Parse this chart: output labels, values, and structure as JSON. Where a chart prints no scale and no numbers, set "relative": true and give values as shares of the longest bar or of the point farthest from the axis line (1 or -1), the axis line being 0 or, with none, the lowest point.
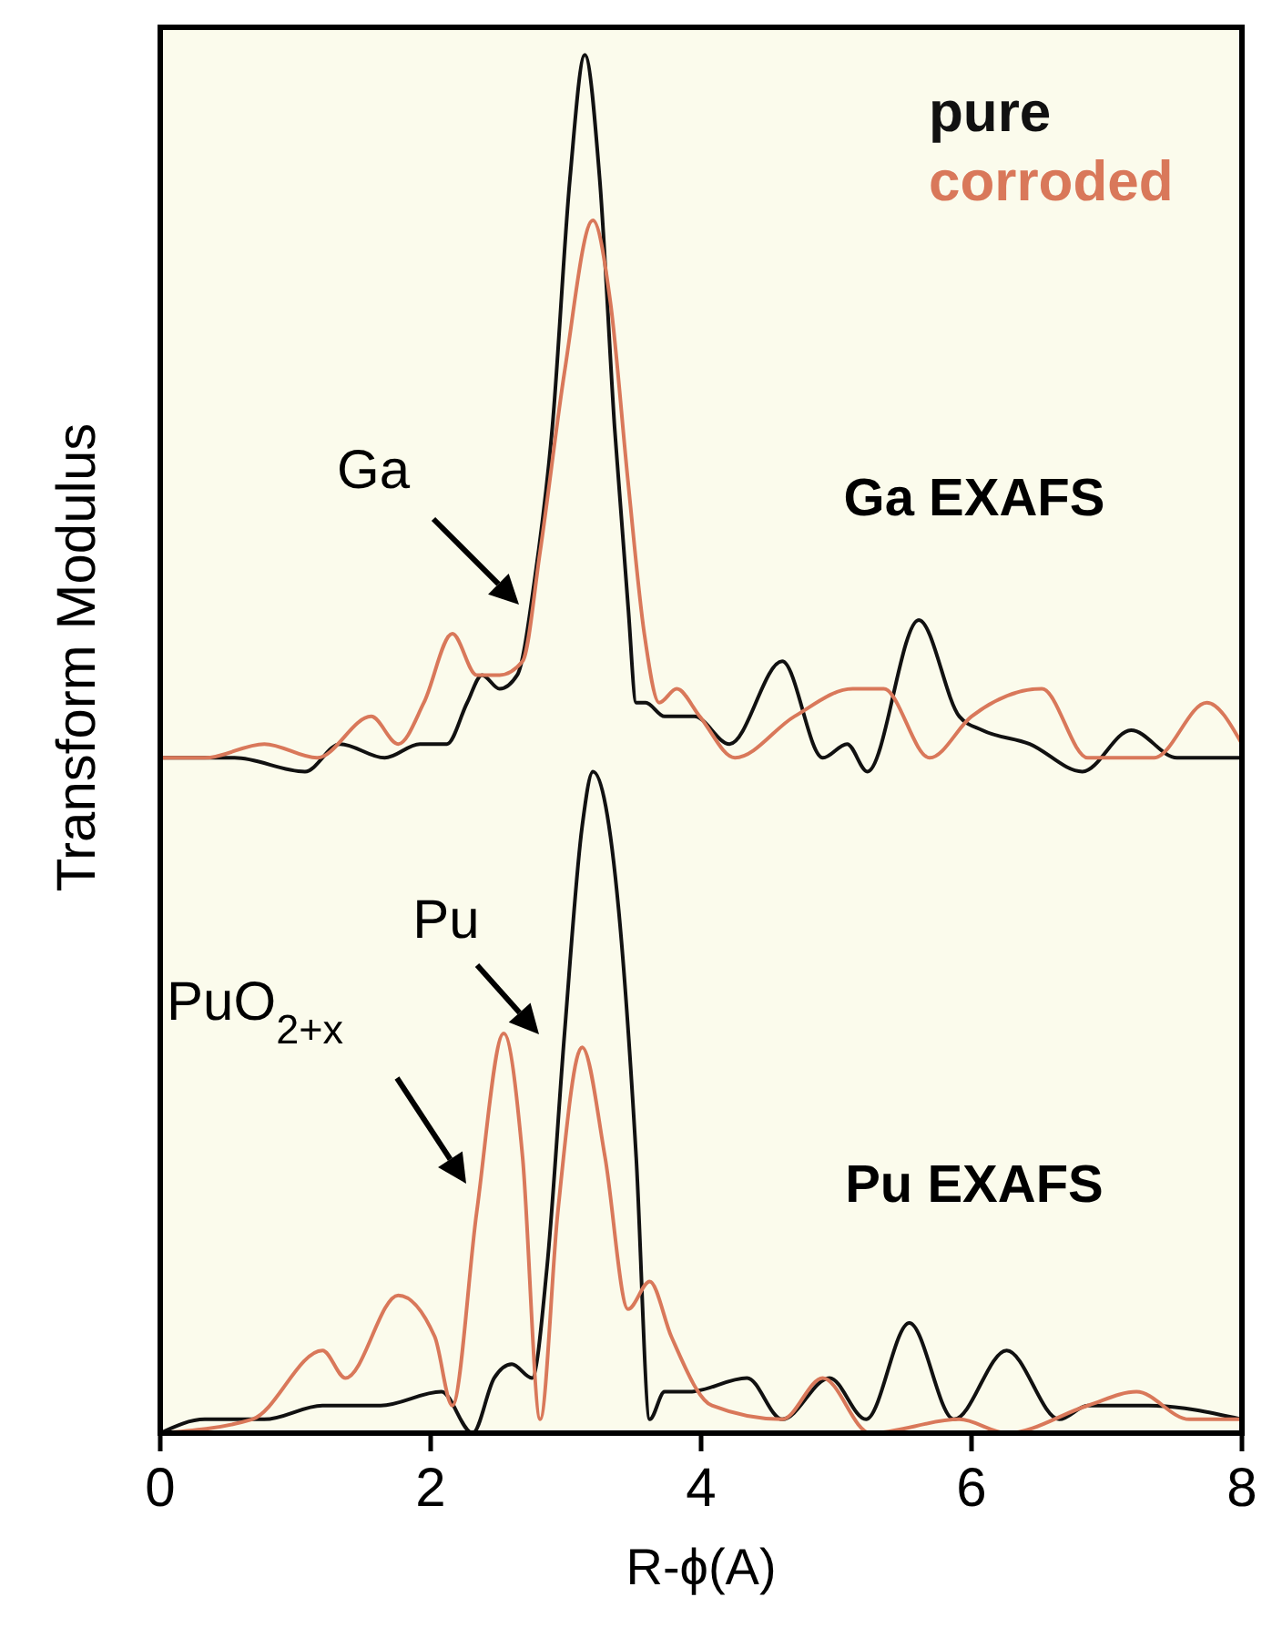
{
  "chart_data": {
    "type": "line",
    "relative": true,
    "xlabel": "R-ϕ(A)",
    "ylabel": "Transform Modulus",
    "xlim": [
      0,
      8
    ],
    "xticks": [
      0,
      2,
      4,
      6,
      8
    ],
    "legend": "top right",
    "grid": false,
    "tick_labels": "x",
    "series": [
      {
        "name": "pure",
        "color": "#111111",
        "x": [
          0,
          0.55,
          1.07,
          1.33,
          1.66,
          1.92,
          2.12,
          2.27,
          2.38,
          2.51,
          2.64,
          2.77,
          2.9,
          3.03,
          3.14,
          3.25,
          3.36,
          3.46,
          3.52,
          3.59,
          3.73,
          3.95,
          4.21,
          4.6,
          4.9,
          5.08,
          5.23,
          5.61,
          5.91,
          6.08,
          6.43,
          6.82,
          7.18,
          7.52,
          8
        ],
        "values": [
          0.49,
          0.49,
          0.48,
          0.5,
          0.49,
          0.5,
          0.5,
          0.53,
          0.55,
          0.54,
          0.55,
          0.62,
          0.73,
          0.91,
          1,
          0.91,
          0.73,
          0.6,
          0.53,
          0.53,
          0.52,
          0.52,
          0.5,
          0.56,
          0.49,
          0.5,
          0.48,
          0.59,
          0.52,
          0.51,
          0.5,
          0.48,
          0.51,
          0.49,
          0.49
        ]
      },
      {
        "name": "corroded",
        "color": "#d9785a",
        "x": [
          0,
          0.33,
          0.77,
          1.16,
          1.56,
          1.76,
          1.95,
          2.16,
          2.34,
          2.51,
          2.68,
          2.81,
          2.99,
          3.2,
          3.33,
          3.46,
          3.58,
          3.69,
          3.82,
          3.99,
          4.25,
          4.69,
          5.12,
          5.35,
          5.69,
          6,
          6.52,
          6.86,
          7.35,
          7.74,
          8
        ],
        "values": [
          0.49,
          0.49,
          0.5,
          0.49,
          0.52,
          0.5,
          0.53,
          0.58,
          0.55,
          0.55,
          0.56,
          0.64,
          0.77,
          0.88,
          0.82,
          0.69,
          0.58,
          0.53,
          0.54,
          0.52,
          0.49,
          0.52,
          0.54,
          0.54,
          0.49,
          0.52,
          0.54,
          0.49,
          0.49,
          0.53,
          0.5
        ]
      },
      {
        "color": "#111111",
        "x": [
          0,
          0.33,
          0.77,
          1.2,
          1.63,
          2.08,
          2.31,
          2.47,
          2.6,
          2.75,
          2.86,
          2.99,
          3.12,
          3.2,
          3.39,
          3.52,
          3.62,
          3.73,
          3.91,
          4.34,
          4.6,
          4.95,
          5.22,
          5.54,
          5.87,
          6.26,
          6.65,
          6.86,
          7.31,
          8
        ],
        "values": [
          0,
          0.01,
          0.01,
          0.02,
          0.02,
          0.03,
          0,
          0.04,
          0.05,
          0.04,
          0.12,
          0.29,
          0.44,
          0.48,
          0.38,
          0.2,
          0.01,
          0.03,
          0.03,
          0.04,
          0.01,
          0.04,
          0.01,
          0.08,
          0.01,
          0.06,
          0.01,
          0.02,
          0.02,
          0.01
        ]
      },
      {
        "color": "#d9785a",
        "x": [
          0,
          0.68,
          1.2,
          1.37,
          1.76,
          2.03,
          2.16,
          2.34,
          2.54,
          2.68,
          2.81,
          2.94,
          3.12,
          3.29,
          3.46,
          3.62,
          3.78,
          4.08,
          4.6,
          4.9,
          5.25,
          5.91,
          6.26,
          6.86,
          7.22,
          7.61,
          8
        ],
        "values": [
          0,
          0.01,
          0.06,
          0.04,
          0.1,
          0.07,
          0.02,
          0.16,
          0.29,
          0.2,
          0.01,
          0.16,
          0.28,
          0.2,
          0.09,
          0.11,
          0.07,
          0.02,
          0.01,
          0.04,
          0,
          0.01,
          0,
          0.02,
          0.03,
          0.01,
          0.01
        ]
      }
    ],
    "annotations": [
      "Ga",
      "Pu",
      "PuO$_{2+x}$",
      "Ga EXAFS",
      "Pu EXAFS"
    ]
  }
}
